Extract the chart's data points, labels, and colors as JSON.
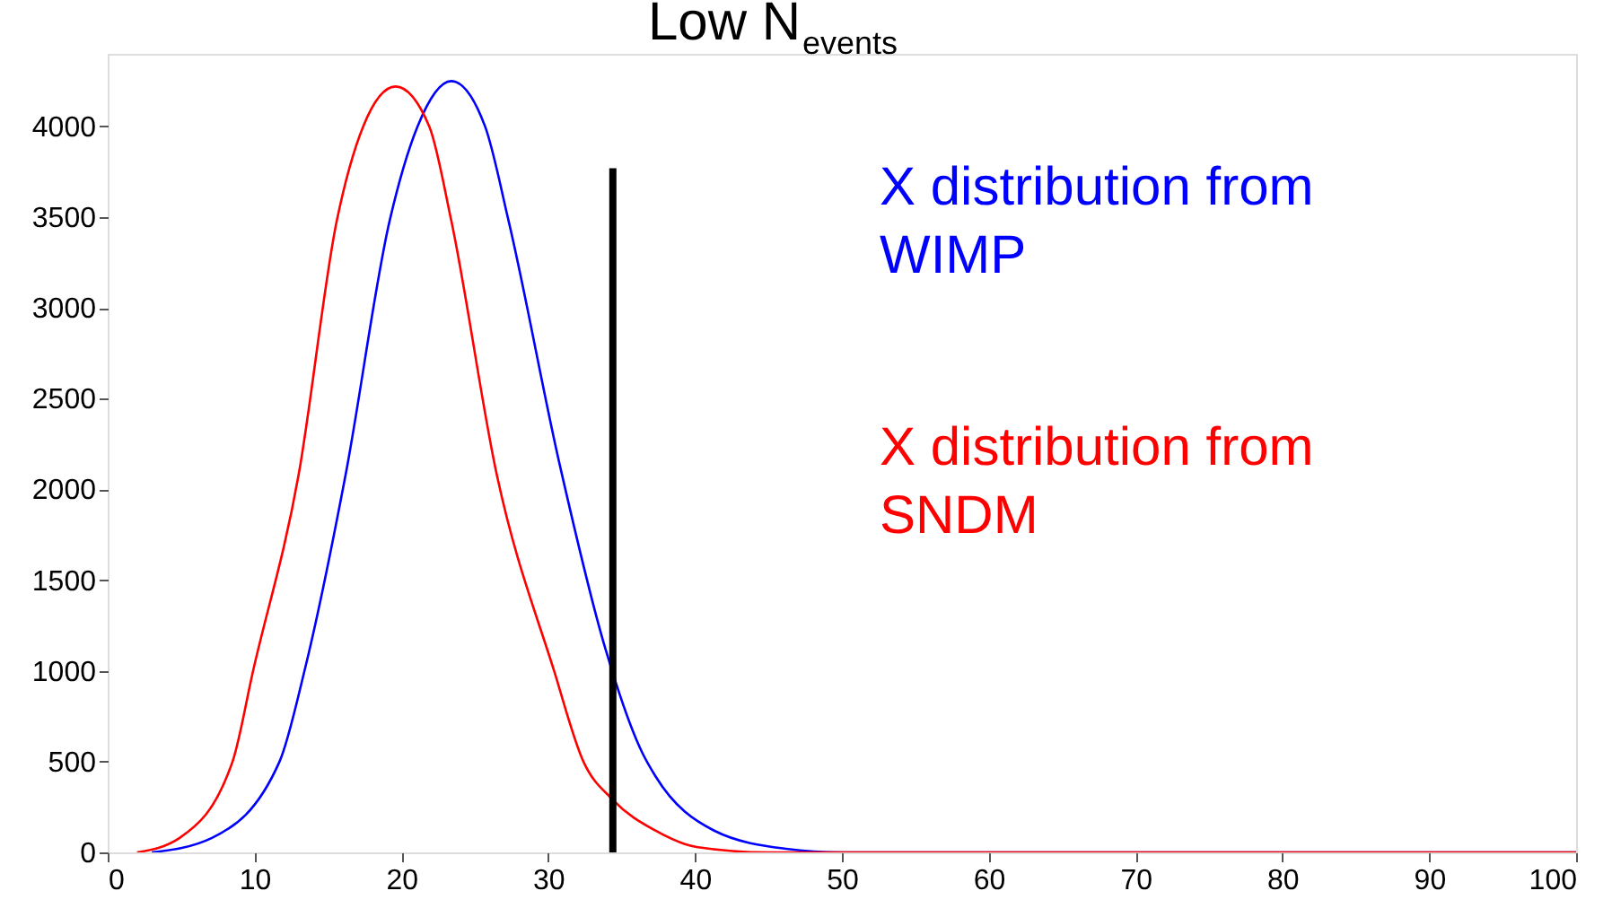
{
  "chart_data": {
    "type": "line",
    "title": "Low N$_{events}$",
    "xlim": [
      0,
      100
    ],
    "ylim": [
      0,
      4400
    ],
    "xticks": [
      0,
      10,
      20,
      30,
      40,
      50,
      60,
      70,
      80,
      90,
      100
    ],
    "yticks": [
      0,
      500,
      1000,
      1500,
      2000,
      2500,
      3000,
      3500,
      4000
    ],
    "grid": false,
    "legend": false,
    "marker": "none",
    "line_style": "solid",
    "series": [
      {
        "name": "X distribution from WIMP",
        "color": "#0000ff",
        "x": [
          3,
          7.1,
          11.7,
          13.4,
          16.2,
          19.2,
          21.1,
          23.4,
          25.7,
          27.3,
          30.8,
          33.9,
          36.4,
          37.3,
          41.3,
          46.2,
          50,
          100
        ],
        "values": [
          0,
          80,
          500,
          1000,
          2080,
          3480,
          4000,
          4250,
          4000,
          3480,
          2130,
          1120,
          550,
          420,
          120,
          20,
          0,
          0
        ]
      },
      {
        "name": "X distribution from SNDM",
        "color": "#ff0000",
        "x": [
          2,
          4.9,
          8.5,
          9.9,
          13.0,
          15.6,
          17.4,
          19.6,
          21.9,
          23.4,
          26.5,
          30.4,
          32.4,
          34.4,
          37.3,
          40.1,
          45,
          100
        ],
        "values": [
          0,
          80,
          500,
          1000,
          2080,
          3480,
          4000,
          4220,
          4000,
          3480,
          2080,
          1000,
          500,
          290,
          120,
          30,
          0,
          0
        ]
      },
      {
        "color": "#000000",
        "x": [
          34.4,
          34.4
        ],
        "values": [
          0,
          3770
        ]
      }
    ]
  }
}
